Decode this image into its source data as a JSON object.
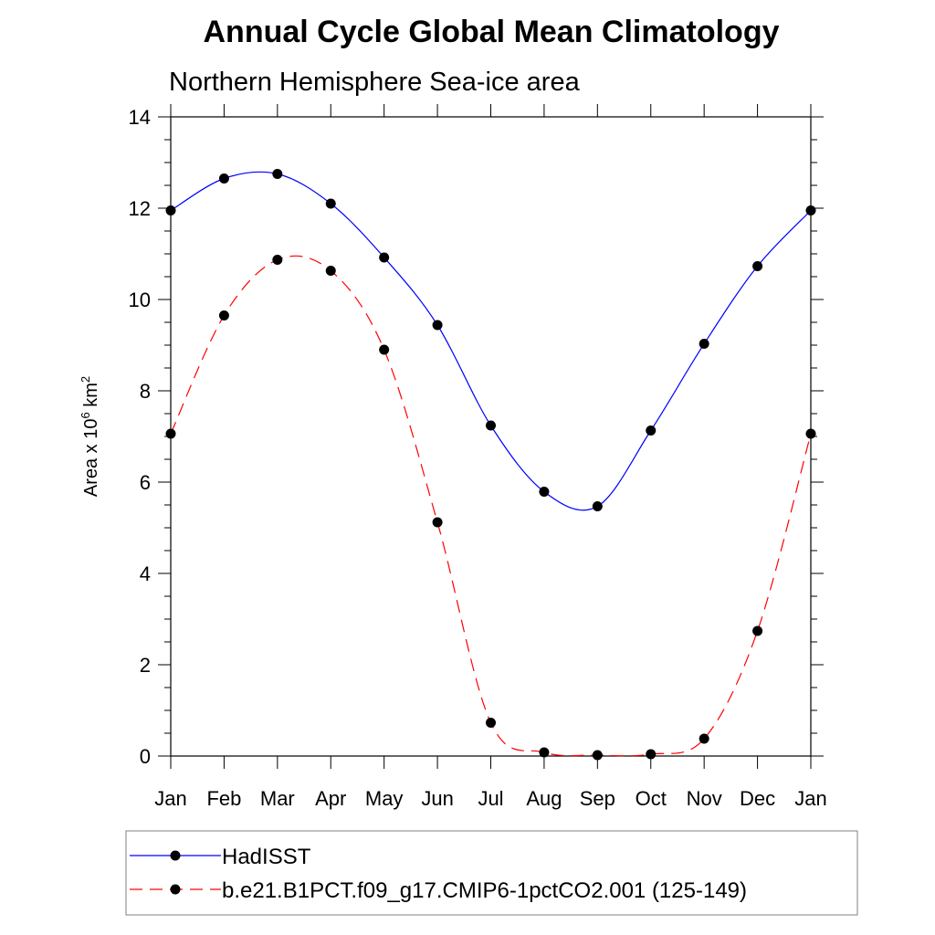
{
  "chart_data": {
    "type": "line",
    "title": "Annual Cycle Global Mean Climatology",
    "subtitle": "Northern Hemisphere Sea-ice area",
    "ylabel": {
      "prefix": "Area x 10",
      "exponent": "6",
      "unit": " km",
      "unit_exponent": "2"
    },
    "xlabel": "",
    "categories": [
      "Jan",
      "Feb",
      "Mar",
      "Apr",
      "May",
      "Jun",
      "Jul",
      "Aug",
      "Sep",
      "Oct",
      "Nov",
      "Dec",
      "Jan"
    ],
    "ylim": [
      0,
      14
    ],
    "yticks": [
      "0",
      "2",
      "4",
      "6",
      "8",
      "10",
      "12",
      "14"
    ],
    "series": [
      {
        "name": "HadISST",
        "color": "#0000ff",
        "dash": "solid",
        "values": [
          11.95,
          12.65,
          12.75,
          12.1,
          10.92,
          9.44,
          7.24,
          5.79,
          5.47,
          7.13,
          9.03,
          10.73,
          11.95
        ]
      },
      {
        "name": "b.e21.B1PCT.f09_g17.CMIP6-1pctCO2.001 (125-149)",
        "color": "#ff0000",
        "dash": "dashed",
        "values": [
          7.06,
          9.65,
          10.87,
          10.63,
          8.9,
          5.12,
          0.73,
          0.08,
          0.02,
          0.04,
          0.38,
          2.74,
          7.06
        ]
      }
    ],
    "legend": "bottom"
  }
}
